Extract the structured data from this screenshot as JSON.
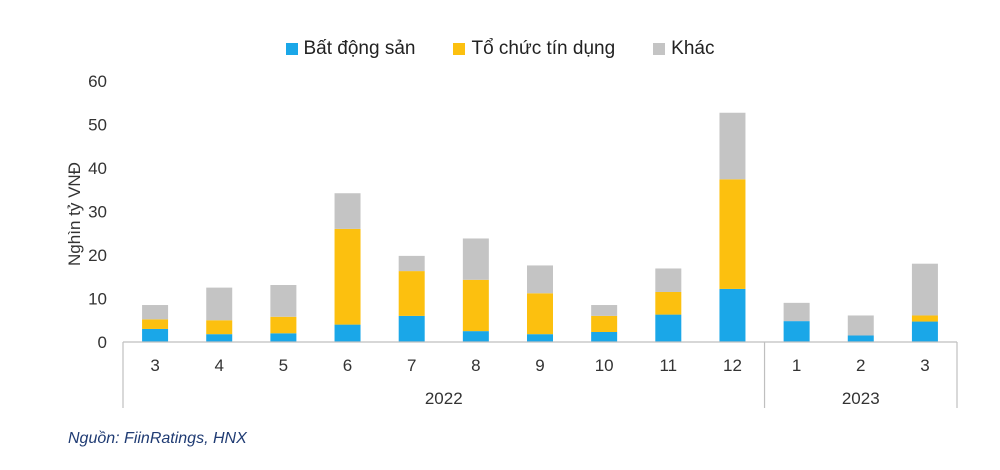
{
  "colors": {
    "bat_dong_san": "#1aa7e8",
    "to_chuc_tin_dung": "#fcc00f",
    "khac": "#c4c4c4",
    "axis": "#bfbfbf",
    "source_text": "#1f3b73"
  },
  "source": "Nguồn: FiinRatings, HNX",
  "chart_data": {
    "type": "bar",
    "stacked": true,
    "title": "",
    "ylabel": "Nghìn tỷ VNĐ",
    "xlabel": "",
    "ylim": [
      0,
      60
    ],
    "yticks": [
      "0",
      "10",
      "20",
      "30",
      "40",
      "50",
      "60"
    ],
    "grid": false,
    "legend_position": "top-center",
    "categories": [
      "3",
      "4",
      "5",
      "6",
      "7",
      "8",
      "9",
      "10",
      "11",
      "12",
      "1",
      "2",
      "3"
    ],
    "groups": [
      {
        "label": "2022",
        "categories": [
          "3",
          "4",
          "5",
          "6",
          "7",
          "8",
          "9",
          "10",
          "11",
          "12"
        ]
      },
      {
        "label": "2023",
        "categories": [
          "1",
          "2",
          "3"
        ]
      }
    ],
    "series": [
      {
        "name": "Bất động sản",
        "color_key": "bat_dong_san",
        "values": [
          3.0,
          1.8,
          2.0,
          4.0,
          6.0,
          2.5,
          1.8,
          2.3,
          6.3,
          12.2,
          4.8,
          1.5,
          4.7
        ]
      },
      {
        "name": "Tổ chức tín dụng",
        "color_key": "to_chuc_tin_dung",
        "values": [
          2.2,
          3.2,
          3.8,
          22.0,
          10.3,
          11.8,
          9.4,
          3.7,
          5.2,
          25.2,
          0.0,
          0.0,
          1.4
        ]
      },
      {
        "name": "Khác",
        "color_key": "khac",
        "values": [
          3.3,
          7.5,
          7.3,
          8.2,
          3.5,
          9.5,
          6.4,
          2.5,
          5.4,
          15.3,
          4.2,
          4.6,
          11.9
        ]
      }
    ]
  }
}
